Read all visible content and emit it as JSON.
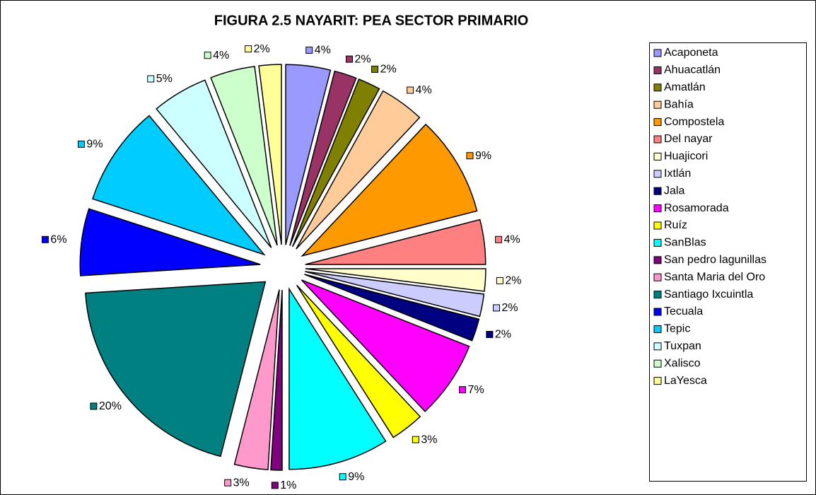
{
  "chart_data": {
    "type": "pie",
    "title": "FIGURA 2.5 NAYARIT: PEA SECTOR PRIMARIO",
    "categories": [
      "Acaponeta",
      "Ahuacatlán",
      "Amatlán",
      "Bahía",
      "Compostela",
      "Del nayar",
      "Huajicori",
      "Ixtlán",
      "Jala",
      "Rosamorada",
      "Ruíz",
      "SanBlas",
      "San pedro lagunillas",
      "Santa Maria del Oro",
      "Santiago Ixcuintla",
      "Tecuala",
      "Tepic",
      "Tuxpan",
      "Xalisco",
      "LaYesca"
    ],
    "values": [
      4,
      2,
      2,
      4,
      9,
      4,
      2,
      2,
      2,
      7,
      3,
      9,
      1,
      3,
      20,
      6,
      9,
      5,
      4,
      2
    ],
    "value_labels": [
      "4%",
      "2%",
      "2%",
      "4%",
      "9%",
      "4%",
      "2%",
      "2%",
      "2%",
      "7%",
      "3%",
      "9%",
      "1%",
      "3%",
      "20%",
      "6%",
      "9%",
      "5%",
      "4%",
      "2%"
    ],
    "colors": [
      "#9999ff",
      "#993366",
      "#808000",
      "#ffcc99",
      "#ff9900",
      "#ff8080",
      "#ffffcc",
      "#ccccff",
      "#000080",
      "#ff00ff",
      "#ffff00",
      "#00ffff",
      "#800080",
      "#ff99cc",
      "#008080",
      "#0000ff",
      "#00ccff",
      "#ccffff",
      "#ccffcc",
      "#ffff99"
    ],
    "legend": "right"
  }
}
